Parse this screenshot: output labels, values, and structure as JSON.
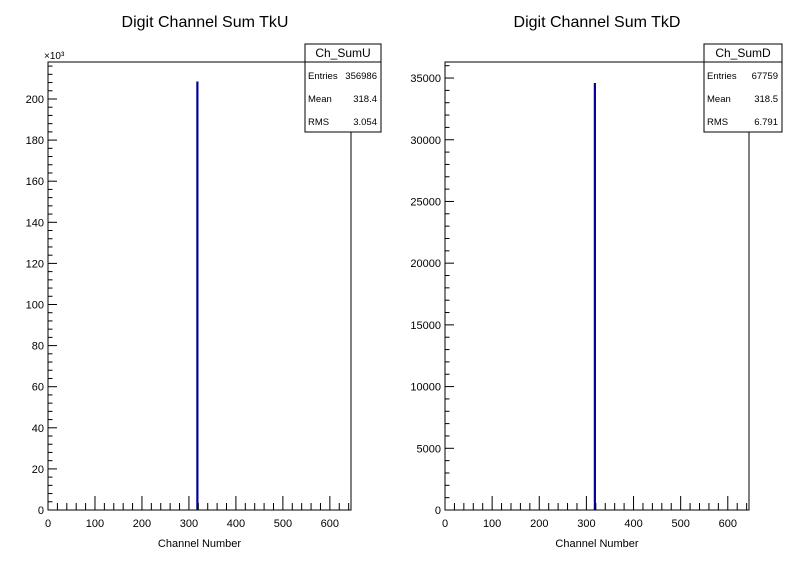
{
  "chart_data": [
    {
      "type": "bar",
      "title": "Digit Channel Sum TkU",
      "xlabel": "Channel Number",
      "ylabel": "",
      "xlim": [
        0,
        645
      ],
      "ylim": [
        0,
        218000
      ],
      "y_multiplier_label": "×10³",
      "xticks": [
        "0",
        "100",
        "200",
        "300",
        "400",
        "500",
        "600"
      ],
      "yticks": [
        "0",
        "20",
        "40",
        "60",
        "80",
        "100",
        "120",
        "140",
        "160",
        "180",
        "200"
      ],
      "series": [
        {
          "x": [
            318
          ],
          "values": [
            208500
          ],
          "color": "#000099"
        }
      ],
      "stats_box": {
        "name": "Ch_SumU",
        "rows": [
          {
            "label": "Entries",
            "value": "356986"
          },
          {
            "label": "Mean",
            "value": "318.4"
          },
          {
            "label": "RMS",
            "value": "3.054"
          }
        ]
      },
      "legend_position": "top-right",
      "grid": false
    },
    {
      "type": "bar",
      "title": "Digit Channel Sum TkD",
      "xlabel": "Channel Number",
      "ylabel": "",
      "xlim": [
        0,
        645
      ],
      "ylim": [
        0,
        36300
      ],
      "y_multiplier_label": "",
      "xticks": [
        "0",
        "100",
        "200",
        "300",
        "400",
        "500",
        "600"
      ],
      "yticks": [
        "0",
        "5000",
        "10000",
        "15000",
        "20000",
        "25000",
        "30000",
        "35000"
      ],
      "series": [
        {
          "x": [
            318
          ],
          "values": [
            34600
          ],
          "color": "#000099"
        }
      ],
      "stats_box": {
        "name": "Ch_SumD",
        "rows": [
          {
            "label": "Entries",
            "value": "67759"
          },
          {
            "label": "Mean",
            "value": "318.5"
          },
          {
            "label": "RMS",
            "value": "6.791"
          }
        ]
      },
      "legend_position": "top-right",
      "grid": false
    }
  ]
}
